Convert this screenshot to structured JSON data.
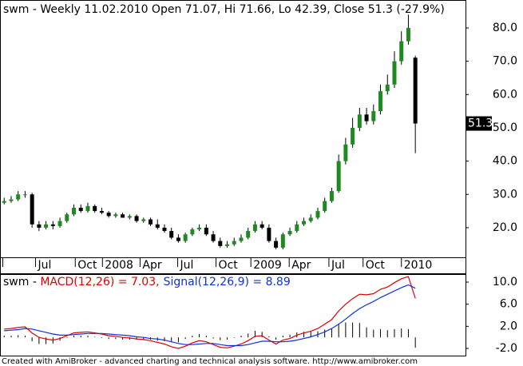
{
  "chart_data": [
    {
      "type": "candlestick",
      "title": "swm - Weekly 11.02.2010 Open 71.07, Hi 71.66, Lo 42.39, Close 51.3 (-27.9%)",
      "open": [
        27.5,
        28,
        28.5,
        30,
        30,
        21,
        20,
        21,
        20.5,
        22,
        24,
        26,
        25,
        26.5,
        25,
        24.5,
        23.5,
        24,
        23,
        23.5,
        22,
        22.5,
        21,
        20,
        19,
        17,
        16,
        18,
        19.5,
        20,
        18,
        16,
        14.5,
        15,
        16,
        17,
        19,
        21,
        20,
        16,
        14,
        18,
        19,
        21,
        22,
        23,
        25,
        28,
        31,
        40,
        45,
        50,
        54,
        52,
        55,
        61,
        63,
        70,
        76,
        71.07
      ],
      "high": [
        29,
        29.5,
        31,
        31,
        30.5,
        22,
        22,
        22,
        23,
        24.5,
        27,
        27,
        27.5,
        27,
        26,
        25,
        24.5,
        24.5,
        24,
        24,
        23,
        23,
        22.5,
        21,
        20,
        18,
        18.5,
        20,
        21,
        21,
        19,
        17,
        16,
        17,
        18,
        20,
        22,
        22,
        21,
        17,
        18.5,
        20,
        22,
        23,
        24,
        26,
        29,
        32,
        42,
        47,
        53,
        56,
        56,
        57,
        63,
        66,
        73,
        79,
        84,
        71.66
      ],
      "low": [
        27,
        27.5,
        28,
        29,
        20,
        19,
        19.5,
        19.5,
        20,
        21.5,
        23.5,
        24.5,
        24.5,
        24.5,
        24,
        23,
        23,
        23,
        22.5,
        21.5,
        21.5,
        20.5,
        19.5,
        18.5,
        16.5,
        15.5,
        15.5,
        17.5,
        19,
        17.5,
        15.5,
        14,
        14,
        14.5,
        15.5,
        16.5,
        18.5,
        19.5,
        15.5,
        13.5,
        13.5,
        17.5,
        18.5,
        20.5,
        21.5,
        22.5,
        24.5,
        27.5,
        30.5,
        39,
        44,
        49,
        51,
        51,
        54,
        60,
        62,
        69,
        75,
        42.39
      ],
      "close": [
        28,
        28.5,
        30,
        30,
        21,
        20,
        21,
        20.5,
        22,
        24,
        26,
        25,
        26.5,
        25,
        24.5,
        23.5,
        24,
        23,
        23.5,
        22,
        22.5,
        21,
        20,
        19,
        17,
        16,
        18,
        19.5,
        20,
        18,
        16,
        14.5,
        15,
        16,
        17,
        19,
        21,
        20,
        16,
        14,
        18,
        19,
        21,
        22,
        23,
        25,
        28,
        31,
        40,
        45,
        50,
        54,
        52,
        55,
        61,
        63,
        70,
        76,
        80,
        51.3
      ],
      "up_color": "#1f8a1f",
      "down_color": "#000000",
      "xlim": [
        -0.6,
        66.2
      ],
      "xticks": [
        {
          "value": -0.2,
          "label": ""
        },
        {
          "value": 4.5,
          "label": "Jul"
        },
        {
          "value": 10.2,
          "label": "Oct"
        },
        {
          "value": 14.1,
          "label": "2008"
        },
        {
          "value": 19.5,
          "label": "Apr"
        },
        {
          "value": 24.9,
          "label": "Jul"
        },
        {
          "value": 30.4,
          "label": "Oct"
        },
        {
          "value": 35.4,
          "label": "2009"
        },
        {
          "value": 40.9,
          "label": "Apr"
        },
        {
          "value": 46.6,
          "label": "Jul"
        },
        {
          "value": 51.5,
          "label": "Oct"
        },
        {
          "value": 57,
          "label": "2010"
        }
      ],
      "ylim": [
        11.1,
        88.4
      ],
      "yticks": [
        {
          "value": 20,
          "label": "20.0"
        },
        {
          "value": 30,
          "label": "30.0"
        },
        {
          "value": 40,
          "label": "40.0"
        },
        {
          "value": 50,
          "label": "50.0"
        },
        {
          "value": 60,
          "label": "60.0"
        },
        {
          "value": 70,
          "label": "70.0"
        },
        {
          "value": 80,
          "label": "80.0"
        }
      ]
    },
    {
      "type": "macd",
      "legend_prefix": "swm - ",
      "series": [
        {
          "name": "MACD(12,26) = 7.03,",
          "color": "#e00000",
          "values": [
            1.5,
            1.6,
            1.8,
            1.9,
            0.8,
            0.0,
            -0.3,
            -0.5,
            -0.2,
            0.3,
            0.8,
            0.9,
            1.0,
            0.8,
            0.6,
            0.3,
            0.2,
            0.0,
            -0.1,
            -0.3,
            -0.4,
            -0.6,
            -0.9,
            -1.2,
            -1.7,
            -2.0,
            -1.6,
            -1.0,
            -0.6,
            -0.8,
            -1.3,
            -1.8,
            -1.9,
            -1.6,
            -1.2,
            -0.6,
            0.2,
            0.3,
            -0.5,
            -1.2,
            -0.5,
            -0.2,
            0.4,
            0.8,
            1.1,
            1.6,
            2.4,
            3.2,
            4.8,
            6.0,
            7.0,
            7.8,
            7.7,
            7.9,
            8.7,
            9.1,
            9.9,
            10.6,
            11.0,
            7.03
          ]
        },
        {
          "name": "Signal(12,26,9) = 8.89",
          "color": "#1030e0",
          "values": [
            1.2,
            1.3,
            1.4,
            1.6,
            1.5,
            1.2,
            0.9,
            0.6,
            0.4,
            0.4,
            0.5,
            0.6,
            0.7,
            0.7,
            0.7,
            0.6,
            0.5,
            0.4,
            0.3,
            0.1,
            0.0,
            -0.2,
            -0.3,
            -0.5,
            -0.8,
            -1.1,
            -1.3,
            -1.3,
            -1.2,
            -1.1,
            -1.1,
            -1.3,
            -1.5,
            -1.5,
            -1.5,
            -1.3,
            -1.0,
            -0.7,
            -0.7,
            -0.8,
            -0.8,
            -0.7,
            -0.5,
            -0.2,
            0.1,
            0.5,
            1.0,
            1.6,
            2.4,
            3.3,
            4.3,
            5.2,
            5.9,
            6.5,
            7.2,
            7.8,
            8.4,
            9.0,
            9.5,
            8.89
          ]
        }
      ],
      "histogram": {
        "color": "#000000",
        "values": [
          0.3,
          0.3,
          0.4,
          0.3,
          -0.7,
          -1.2,
          -1.2,
          -1.1,
          -0.6,
          -0.1,
          0.3,
          0.3,
          0.3,
          0.1,
          -0.1,
          -0.3,
          -0.3,
          -0.4,
          -0.4,
          -0.4,
          -0.4,
          -0.4,
          -0.6,
          -0.7,
          -0.9,
          -0.9,
          -0.3,
          0.3,
          0.6,
          0.3,
          -0.2,
          -0.5,
          -0.4,
          -0.1,
          0.3,
          0.7,
          1.2,
          1.0,
          0.2,
          -0.4,
          0.3,
          0.5,
          0.9,
          1.0,
          1.0,
          1.1,
          1.4,
          1.6,
          2.4,
          2.7,
          2.7,
          2.6,
          1.8,
          1.4,
          1.5,
          1.3,
          1.5,
          1.6,
          1.5,
          -1.86
        ]
      },
      "xlim": [
        -0.6,
        66.2
      ],
      "ylim": [
        -3.3,
        11.3
      ],
      "yticks": [
        {
          "value": -2,
          "label": "-2.0"
        },
        {
          "value": 2,
          "label": "2.0"
        },
        {
          "value": 6,
          "label": "6.0"
        },
        {
          "value": 10,
          "label": "10.0"
        }
      ]
    }
  ],
  "footer": "Created with AmiBroker - advanced charting and technical analysis software. http://www.amibroker.com"
}
